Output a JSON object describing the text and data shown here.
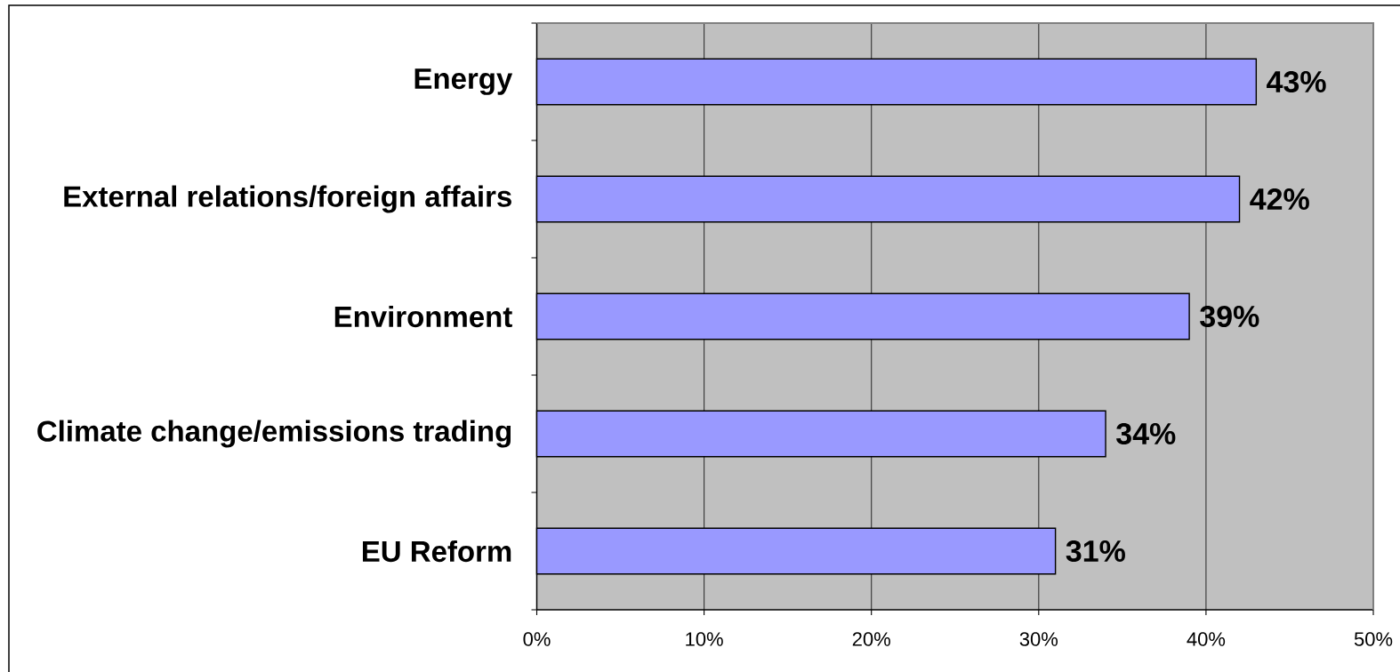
{
  "chart_data": {
    "type": "bar",
    "orientation": "horizontal",
    "categories": [
      "Energy",
      "External relations/foreign affairs",
      "Environment",
      "Climate change/emissions trading",
      "EU Reform"
    ],
    "values": [
      43,
      42,
      39,
      34,
      31
    ],
    "value_labels": [
      "43%",
      "42%",
      "39%",
      "34%",
      "31%"
    ],
    "color": "#9999ff",
    "xlim": [
      0,
      50
    ],
    "xticks": [
      {
        "value": 0,
        "label": "0%"
      },
      {
        "value": 10,
        "label": "10%"
      },
      {
        "value": 20,
        "label": "20%"
      },
      {
        "value": 30,
        "label": "30%"
      },
      {
        "value": 40,
        "label": "40%"
      },
      {
        "value": 50,
        "label": "50%"
      }
    ],
    "grid": "x"
  }
}
